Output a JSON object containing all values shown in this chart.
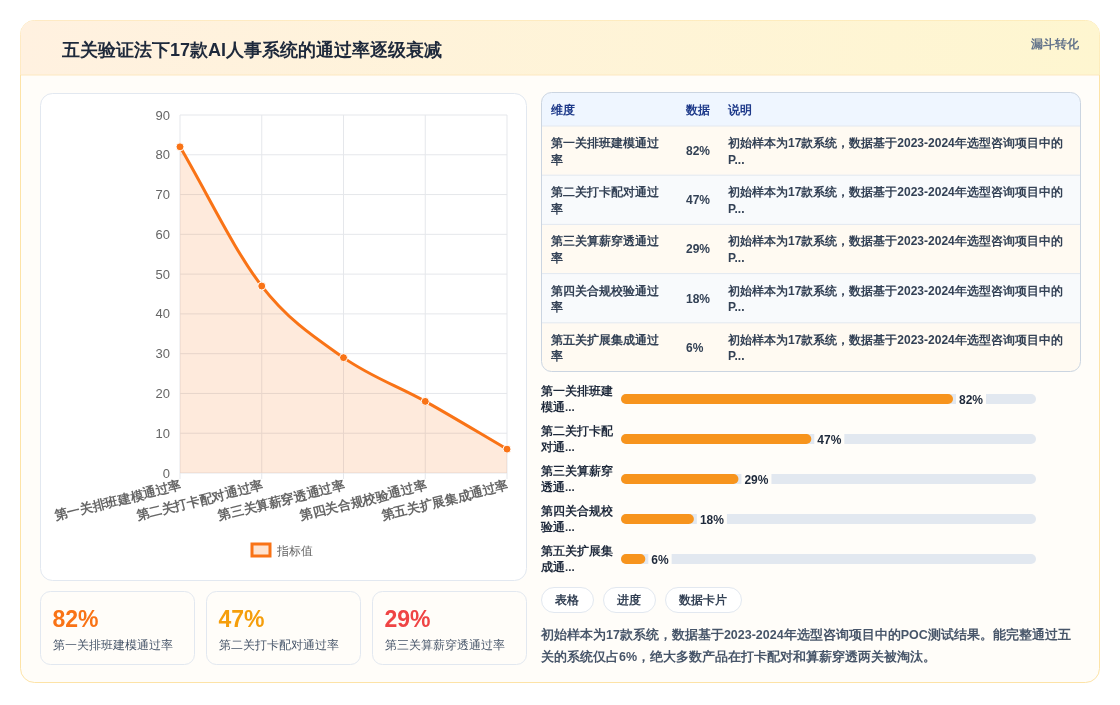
{
  "chart_data": [
    {
      "type": "other",
      "title": "五关验证法下17款AI人事系统的通过率逐级衰减",
      "annotations": [
        "漏斗转化"
      ]
    },
    {
      "type": "area",
      "categories": [
        "第一关排班建模通过率",
        "第二关打卡配对通过率",
        "第三关算薪穿透通过率",
        "第四关合规校验通过率",
        "第五关扩展集成通过率"
      ],
      "series": [
        {
          "name": "指标值",
          "color": "#f97316",
          "values": [
            82,
            47,
            29,
            18,
            6
          ]
        }
      ],
      "ylim": [
        0,
        90
      ],
      "yticks": [
        0,
        10,
        20,
        30,
        40,
        50,
        60,
        70,
        80,
        90
      ],
      "grid": true,
      "legend": "bottom",
      "marker": "circle",
      "line_style": "solid"
    },
    {
      "type": "other",
      "categories": [
        "第一关排班建模通过率",
        "第二关打卡配对通过率",
        "第三关算薪穿透通过率",
        "第四关合规校验通过率",
        "第五关扩展集成通过率"
      ],
      "value_labels": [
        "82%",
        "47%",
        "29%",
        "18%",
        "6%"
      ],
      "annotations": [
        "维度",
        "数据",
        "说明",
        "初始样本为17款系统，数据基于2023-2024年选型咨询项目中的P...",
        "初始样本为17款系统，数据基于2023-2024年选型咨询项目中的P...",
        "初始样本为17款系统，数据基于2023-2024年选型咨询项目中的P...",
        "初始样本为17款系统，数据基于2023-2024年选型咨询项目中的P...",
        "初始样本为17款系统，数据基于2023-2024年选型咨询项目中的P..."
      ]
    },
    {
      "type": "bar",
      "orientation": "horizontal",
      "categories": [
        "第一关排班建模通...",
        "第二关打卡配对通...",
        "第三关算薪穿透通...",
        "第四关合规校验通...",
        "第五关扩展集成通..."
      ],
      "values": [
        82,
        47,
        29,
        18,
        6
      ],
      "value_labels": [
        "82%",
        "47%",
        "29%",
        "18%",
        "6%"
      ],
      "color": "#f7941d"
    },
    {
      "type": "other",
      "categories": [
        "第一关排班建模通过率",
        "第二关打卡配对通过率",
        "第三关算薪穿透通过率"
      ],
      "value_labels": [
        "82%",
        "47%",
        "29%"
      ],
      "colors": [
        "#f97316",
        "#f59e0b",
        "#ef4444"
      ]
    },
    {
      "type": "other",
      "annotations": [
        "表格",
        "进度",
        "数据卡片",
        "初始样本为17款系统，数据基于2023-2024年选型咨询项目中的POC测试结果。能完整通过五关的系统仅占6%，绝大多数产品在打卡配对和算薪穿透两关被淘汰。"
      ]
    }
  ]
}
